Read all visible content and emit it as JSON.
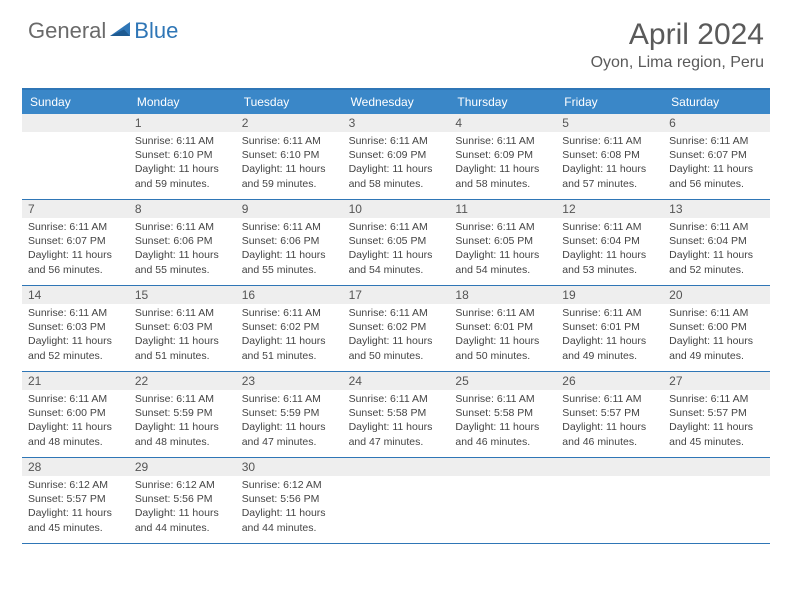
{
  "logo": {
    "general": "General",
    "blue": "Blue"
  },
  "title": "April 2024",
  "location": "Oyon, Lima region, Peru",
  "colors": {
    "header_bg": "#3a87c8",
    "border": "#2f76b6",
    "daynum_bg": "#eeeeee",
    "text": "#444444",
    "title_text": "#5a5a5a"
  },
  "dayNames": [
    "Sunday",
    "Monday",
    "Tuesday",
    "Wednesday",
    "Thursday",
    "Friday",
    "Saturday"
  ],
  "weeks": [
    [
      {
        "n": "",
        "sr": "",
        "ss": "",
        "dl": ""
      },
      {
        "n": "1",
        "sr": "Sunrise: 6:11 AM",
        "ss": "Sunset: 6:10 PM",
        "dl": "Daylight: 11 hours and 59 minutes."
      },
      {
        "n": "2",
        "sr": "Sunrise: 6:11 AM",
        "ss": "Sunset: 6:10 PM",
        "dl": "Daylight: 11 hours and 59 minutes."
      },
      {
        "n": "3",
        "sr": "Sunrise: 6:11 AM",
        "ss": "Sunset: 6:09 PM",
        "dl": "Daylight: 11 hours and 58 minutes."
      },
      {
        "n": "4",
        "sr": "Sunrise: 6:11 AM",
        "ss": "Sunset: 6:09 PM",
        "dl": "Daylight: 11 hours and 58 minutes."
      },
      {
        "n": "5",
        "sr": "Sunrise: 6:11 AM",
        "ss": "Sunset: 6:08 PM",
        "dl": "Daylight: 11 hours and 57 minutes."
      },
      {
        "n": "6",
        "sr": "Sunrise: 6:11 AM",
        "ss": "Sunset: 6:07 PM",
        "dl": "Daylight: 11 hours and 56 minutes."
      }
    ],
    [
      {
        "n": "7",
        "sr": "Sunrise: 6:11 AM",
        "ss": "Sunset: 6:07 PM",
        "dl": "Daylight: 11 hours and 56 minutes."
      },
      {
        "n": "8",
        "sr": "Sunrise: 6:11 AM",
        "ss": "Sunset: 6:06 PM",
        "dl": "Daylight: 11 hours and 55 minutes."
      },
      {
        "n": "9",
        "sr": "Sunrise: 6:11 AM",
        "ss": "Sunset: 6:06 PM",
        "dl": "Daylight: 11 hours and 55 minutes."
      },
      {
        "n": "10",
        "sr": "Sunrise: 6:11 AM",
        "ss": "Sunset: 6:05 PM",
        "dl": "Daylight: 11 hours and 54 minutes."
      },
      {
        "n": "11",
        "sr": "Sunrise: 6:11 AM",
        "ss": "Sunset: 6:05 PM",
        "dl": "Daylight: 11 hours and 54 minutes."
      },
      {
        "n": "12",
        "sr": "Sunrise: 6:11 AM",
        "ss": "Sunset: 6:04 PM",
        "dl": "Daylight: 11 hours and 53 minutes."
      },
      {
        "n": "13",
        "sr": "Sunrise: 6:11 AM",
        "ss": "Sunset: 6:04 PM",
        "dl": "Daylight: 11 hours and 52 minutes."
      }
    ],
    [
      {
        "n": "14",
        "sr": "Sunrise: 6:11 AM",
        "ss": "Sunset: 6:03 PM",
        "dl": "Daylight: 11 hours and 52 minutes."
      },
      {
        "n": "15",
        "sr": "Sunrise: 6:11 AM",
        "ss": "Sunset: 6:03 PM",
        "dl": "Daylight: 11 hours and 51 minutes."
      },
      {
        "n": "16",
        "sr": "Sunrise: 6:11 AM",
        "ss": "Sunset: 6:02 PM",
        "dl": "Daylight: 11 hours and 51 minutes."
      },
      {
        "n": "17",
        "sr": "Sunrise: 6:11 AM",
        "ss": "Sunset: 6:02 PM",
        "dl": "Daylight: 11 hours and 50 minutes."
      },
      {
        "n": "18",
        "sr": "Sunrise: 6:11 AM",
        "ss": "Sunset: 6:01 PM",
        "dl": "Daylight: 11 hours and 50 minutes."
      },
      {
        "n": "19",
        "sr": "Sunrise: 6:11 AM",
        "ss": "Sunset: 6:01 PM",
        "dl": "Daylight: 11 hours and 49 minutes."
      },
      {
        "n": "20",
        "sr": "Sunrise: 6:11 AM",
        "ss": "Sunset: 6:00 PM",
        "dl": "Daylight: 11 hours and 49 minutes."
      }
    ],
    [
      {
        "n": "21",
        "sr": "Sunrise: 6:11 AM",
        "ss": "Sunset: 6:00 PM",
        "dl": "Daylight: 11 hours and 48 minutes."
      },
      {
        "n": "22",
        "sr": "Sunrise: 6:11 AM",
        "ss": "Sunset: 5:59 PM",
        "dl": "Daylight: 11 hours and 48 minutes."
      },
      {
        "n": "23",
        "sr": "Sunrise: 6:11 AM",
        "ss": "Sunset: 5:59 PM",
        "dl": "Daylight: 11 hours and 47 minutes."
      },
      {
        "n": "24",
        "sr": "Sunrise: 6:11 AM",
        "ss": "Sunset: 5:58 PM",
        "dl": "Daylight: 11 hours and 47 minutes."
      },
      {
        "n": "25",
        "sr": "Sunrise: 6:11 AM",
        "ss": "Sunset: 5:58 PM",
        "dl": "Daylight: 11 hours and 46 minutes."
      },
      {
        "n": "26",
        "sr": "Sunrise: 6:11 AM",
        "ss": "Sunset: 5:57 PM",
        "dl": "Daylight: 11 hours and 46 minutes."
      },
      {
        "n": "27",
        "sr": "Sunrise: 6:11 AM",
        "ss": "Sunset: 5:57 PM",
        "dl": "Daylight: 11 hours and 45 minutes."
      }
    ],
    [
      {
        "n": "28",
        "sr": "Sunrise: 6:12 AM",
        "ss": "Sunset: 5:57 PM",
        "dl": "Daylight: 11 hours and 45 minutes."
      },
      {
        "n": "29",
        "sr": "Sunrise: 6:12 AM",
        "ss": "Sunset: 5:56 PM",
        "dl": "Daylight: 11 hours and 44 minutes."
      },
      {
        "n": "30",
        "sr": "Sunrise: 6:12 AM",
        "ss": "Sunset: 5:56 PM",
        "dl": "Daylight: 11 hours and 44 minutes."
      },
      {
        "n": "",
        "sr": "",
        "ss": "",
        "dl": ""
      },
      {
        "n": "",
        "sr": "",
        "ss": "",
        "dl": ""
      },
      {
        "n": "",
        "sr": "",
        "ss": "",
        "dl": ""
      },
      {
        "n": "",
        "sr": "",
        "ss": "",
        "dl": ""
      }
    ]
  ]
}
